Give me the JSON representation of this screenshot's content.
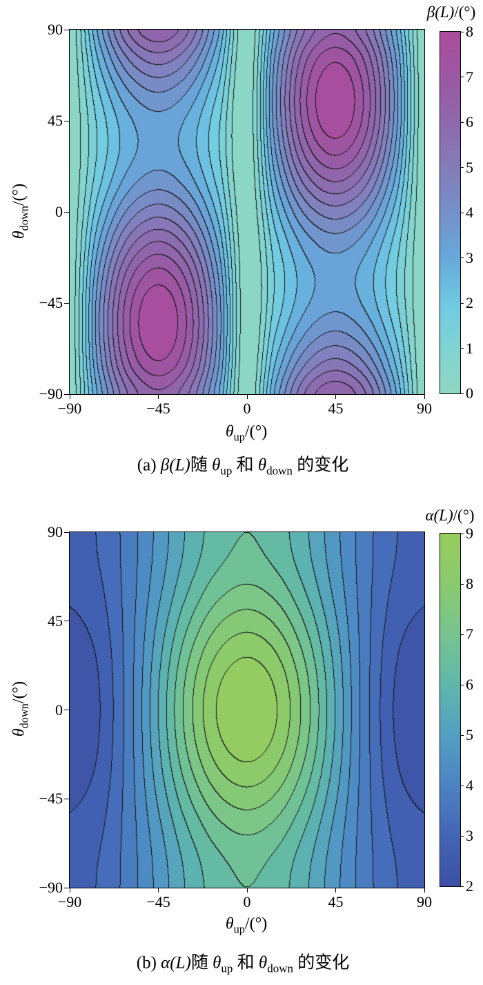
{
  "figure": {
    "background": "#ffffff",
    "contour_line_color": "#161616"
  },
  "panels": [
    {
      "colorbar_title": {
        "func": "β(L)",
        "unit": "/(°)"
      },
      "xlabel": {
        "theta": "θ",
        "sub": "up",
        "unit": "/(°)"
      },
      "ylabel": {
        "theta": "θ",
        "sub": "down",
        "unit": "/(°)"
      },
      "caption": {
        "index": "(a) ",
        "func": "β(L)",
        "mid": "随 ",
        "theta1": "θ",
        "sub1": "up",
        "and": " 和 ",
        "theta2": "θ",
        "sub2": "down",
        "tail": " 的变化"
      }
    },
    {
      "colorbar_title": {
        "func": "α(L)",
        "unit": "/(°)"
      },
      "xlabel": {
        "theta": "θ",
        "sub": "up",
        "unit": "/(°)"
      },
      "ylabel": {
        "theta": "θ",
        "sub": "down",
        "unit": "/(°)"
      },
      "caption": {
        "index": "(b) ",
        "func": "α(L)",
        "mid": "随 ",
        "theta1": "θ",
        "sub1": "up",
        "and": " 和 ",
        "theta2": "θ",
        "sub2": "down",
        "tail": " 的变化"
      }
    }
  ],
  "chart_data": [
    {
      "type": "heatmap",
      "subtype": "filled_contour",
      "title": "β(L)/(°)",
      "xlabel": "θ_up/(°)",
      "ylabel": "θ_down/(°)",
      "x": [
        -90,
        -75,
        -60,
        -45,
        -30,
        -15,
        0,
        15,
        30,
        45,
        60,
        75,
        90
      ],
      "y": [
        -90,
        -75,
        -60,
        -45,
        -30,
        -15,
        0,
        15,
        30,
        45,
        60,
        75,
        90
      ],
      "x_ticks": [
        -90,
        -45,
        0,
        45,
        90
      ],
      "y_ticks": [
        -90,
        -45,
        0,
        45,
        90
      ],
      "zmin": 0,
      "zmax": 8,
      "contour_interval": 0.5,
      "colorbar_ticks": [
        0,
        1,
        2,
        3,
        4,
        5,
        6,
        7,
        8
      ],
      "colormap": [
        {
          "v": 0,
          "c": "#8fd7c0"
        },
        {
          "v": 1,
          "c": "#7fd4d2"
        },
        {
          "v": 2,
          "c": "#6fc9e4"
        },
        {
          "v": 3,
          "c": "#66a9db"
        },
        {
          "v": 4,
          "c": "#7590c9"
        },
        {
          "v": 5,
          "c": "#847cba"
        },
        {
          "v": 6,
          "c": "#8e69ad"
        },
        {
          "v": 7,
          "c": "#9b57a3"
        },
        {
          "v": 8,
          "c": "#ac4b9c"
        }
      ],
      "values": [
        [
          0,
          3.21,
          5.56,
          6.42,
          5.56,
          3.21,
          0,
          3.21,
          5.56,
          6.42,
          5.56,
          3.21,
          0
        ],
        [
          0,
          3.72,
          6.44,
          7.44,
          6.44,
          3.72,
          0,
          2.59,
          4.49,
          5.18,
          4.49,
          2.59,
          0
        ],
        [
          0,
          3.98,
          6.89,
          7.96,
          6.89,
          3.98,
          0,
          2.03,
          3.51,
          4.06,
          3.51,
          2.03,
          0
        ],
        [
          0,
          3.93,
          6.8,
          7.86,
          6.8,
          3.93,
          0,
          1.67,
          2.9,
          3.34,
          2.9,
          1.67,
          0
        ],
        [
          0,
          3.57,
          6.19,
          7.14,
          6.19,
          3.57,
          0,
          1.62,
          2.81,
          3.24,
          2.81,
          1.62,
          0
        ],
        [
          0,
          3.01,
          5.21,
          6.02,
          5.21,
          3.01,
          0,
          1.88,
          3.26,
          3.76,
          3.26,
          1.88,
          0
        ],
        [
          0,
          2.39,
          4.14,
          4.78,
          4.14,
          2.39,
          0,
          2.39,
          4.14,
          4.78,
          4.14,
          2.39,
          0
        ],
        [
          0,
          1.88,
          3.26,
          3.76,
          3.26,
          1.88,
          0,
          3.01,
          5.21,
          6.02,
          5.21,
          3.01,
          0
        ],
        [
          0,
          1.62,
          2.81,
          3.24,
          2.81,
          1.62,
          0,
          3.57,
          6.19,
          7.14,
          6.19,
          3.57,
          0
        ],
        [
          0,
          1.67,
          2.9,
          3.34,
          2.9,
          1.67,
          0,
          3.93,
          6.8,
          7.86,
          6.8,
          3.93,
          0
        ],
        [
          0,
          2.03,
          3.51,
          4.06,
          3.51,
          2.03,
          0,
          3.98,
          6.89,
          7.96,
          6.89,
          3.98,
          0
        ],
        [
          0,
          2.59,
          4.49,
          5.18,
          4.49,
          2.59,
          0,
          3.72,
          6.44,
          7.44,
          6.44,
          3.72,
          0
        ],
        [
          0,
          3.21,
          5.56,
          6.42,
          5.56,
          3.21,
          0,
          3.21,
          5.56,
          6.42,
          5.56,
          3.21,
          0
        ]
      ]
    },
    {
      "type": "heatmap",
      "subtype": "filled_contour",
      "title": "α(L)/(°)",
      "xlabel": "θ_up/(°)",
      "ylabel": "θ_down/(°)",
      "x": [
        -90,
        -75,
        -60,
        -45,
        -30,
        -15,
        0,
        15,
        30,
        45,
        60,
        75,
        90
      ],
      "y": [
        -90,
        -75,
        -60,
        -45,
        -30,
        -15,
        0,
        15,
        30,
        45,
        60,
        75,
        90
      ],
      "x_ticks": [
        -90,
        -45,
        0,
        45,
        90
      ],
      "y_ticks": [
        -90,
        -45,
        0,
        45,
        90
      ],
      "zmin": 2,
      "zmax": 9,
      "contour_interval": 0.5,
      "colorbar_ticks": [
        2,
        3,
        4,
        5,
        6,
        7,
        8,
        9
      ],
      "colormap": [
        {
          "v": 2,
          "c": "#3c4fa4"
        },
        {
          "v": 3,
          "c": "#4365b5"
        },
        {
          "v": 4,
          "c": "#4c83c3"
        },
        {
          "v": 5,
          "c": "#539fc3"
        },
        {
          "v": 6,
          "c": "#5fb7ab"
        },
        {
          "v": 7,
          "c": "#77c48f"
        },
        {
          "v": 8,
          "c": "#8aca6e"
        },
        {
          "v": 9,
          "c": "#97cd5c"
        }
      ],
      "values": [
        [
          2.8,
          3.05,
          3.73,
          4.65,
          5.58,
          6.25,
          6.5,
          6.25,
          5.58,
          4.65,
          3.73,
          3.05,
          2.8
        ],
        [
          2.75,
          3.01,
          3.73,
          4.71,
          5.69,
          6.4,
          6.67,
          6.4,
          5.69,
          4.71,
          3.73,
          3.01,
          2.75
        ],
        [
          2.6,
          2.9,
          3.73,
          4.86,
          5.99,
          6.82,
          7.13,
          6.82,
          5.99,
          4.86,
          3.73,
          2.9,
          2.6
        ],
        [
          2.4,
          2.76,
          3.74,
          5.08,
          6.41,
          7.39,
          7.75,
          7.39,
          6.41,
          5.08,
          3.74,
          2.76,
          2.4
        ],
        [
          2.2,
          2.61,
          3.74,
          5.29,
          6.83,
          7.96,
          8.38,
          7.96,
          6.83,
          5.29,
          3.74,
          2.61,
          2.2
        ],
        [
          2.05,
          2.51,
          3.75,
          5.44,
          7.14,
          8.38,
          8.83,
          8.38,
          7.14,
          5.44,
          3.75,
          2.51,
          2.05
        ],
        [
          2.0,
          2.47,
          3.75,
          5.5,
          7.25,
          8.53,
          9.0,
          8.53,
          7.25,
          5.5,
          3.75,
          2.47,
          2.0
        ],
        [
          2.05,
          2.51,
          3.75,
          5.44,
          7.14,
          8.38,
          8.83,
          8.38,
          7.14,
          5.44,
          3.75,
          2.51,
          2.05
        ],
        [
          2.2,
          2.61,
          3.74,
          5.29,
          6.83,
          7.96,
          8.38,
          7.96,
          6.83,
          5.29,
          3.74,
          2.61,
          2.2
        ],
        [
          2.4,
          2.76,
          3.74,
          5.08,
          6.41,
          7.39,
          7.75,
          7.39,
          6.41,
          5.08,
          3.74,
          2.76,
          2.4
        ],
        [
          2.6,
          2.9,
          3.73,
          4.86,
          5.99,
          6.82,
          7.13,
          6.82,
          5.99,
          4.86,
          3.73,
          2.9,
          2.6
        ],
        [
          2.75,
          3.01,
          3.73,
          4.71,
          5.69,
          6.4,
          6.67,
          6.4,
          5.69,
          4.71,
          3.73,
          3.01,
          2.75
        ],
        [
          2.8,
          3.05,
          3.73,
          4.65,
          5.58,
          6.25,
          6.5,
          6.25,
          5.58,
          4.65,
          3.73,
          3.05,
          2.8
        ]
      ]
    }
  ]
}
